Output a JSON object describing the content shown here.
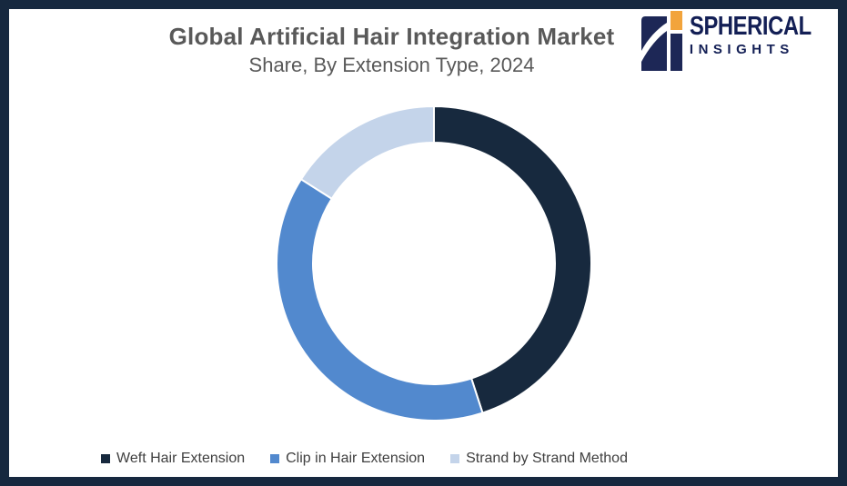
{
  "page": {
    "border_color": "#16283F",
    "background_color": "#FFFFFF"
  },
  "header": {
    "title": "Global Artificial Hair Integration Market",
    "subtitle": "Share, By Extension Type, 2024",
    "text_color": "#595959"
  },
  "logo": {
    "line1": "SPHERICAL",
    "line2": "INSIGHTS",
    "text_color": "#131F55",
    "mark_navy": "#1D2756",
    "mark_orange": "#F2A43C"
  },
  "chart_data": {
    "type": "pie",
    "variant": "donut",
    "title": "Global Artificial Hair Integration Market Share, By Extension Type, 2024",
    "start_angle_deg": 0,
    "direction": "clockwise",
    "legend_position": "bottom",
    "separator_color": "#FFFFFF",
    "segments": [
      {
        "label": "Weft Hair Extension",
        "value_pct": 45,
        "color": "#17293E"
      },
      {
        "label": "Clip in Hair Extension",
        "value_pct": 39,
        "color": "#5289CE"
      },
      {
        "label": "Strand by Strand Method",
        "value_pct": 16,
        "color": "#C4D4EA"
      }
    ]
  },
  "legend": {
    "text_color": "#404040"
  }
}
